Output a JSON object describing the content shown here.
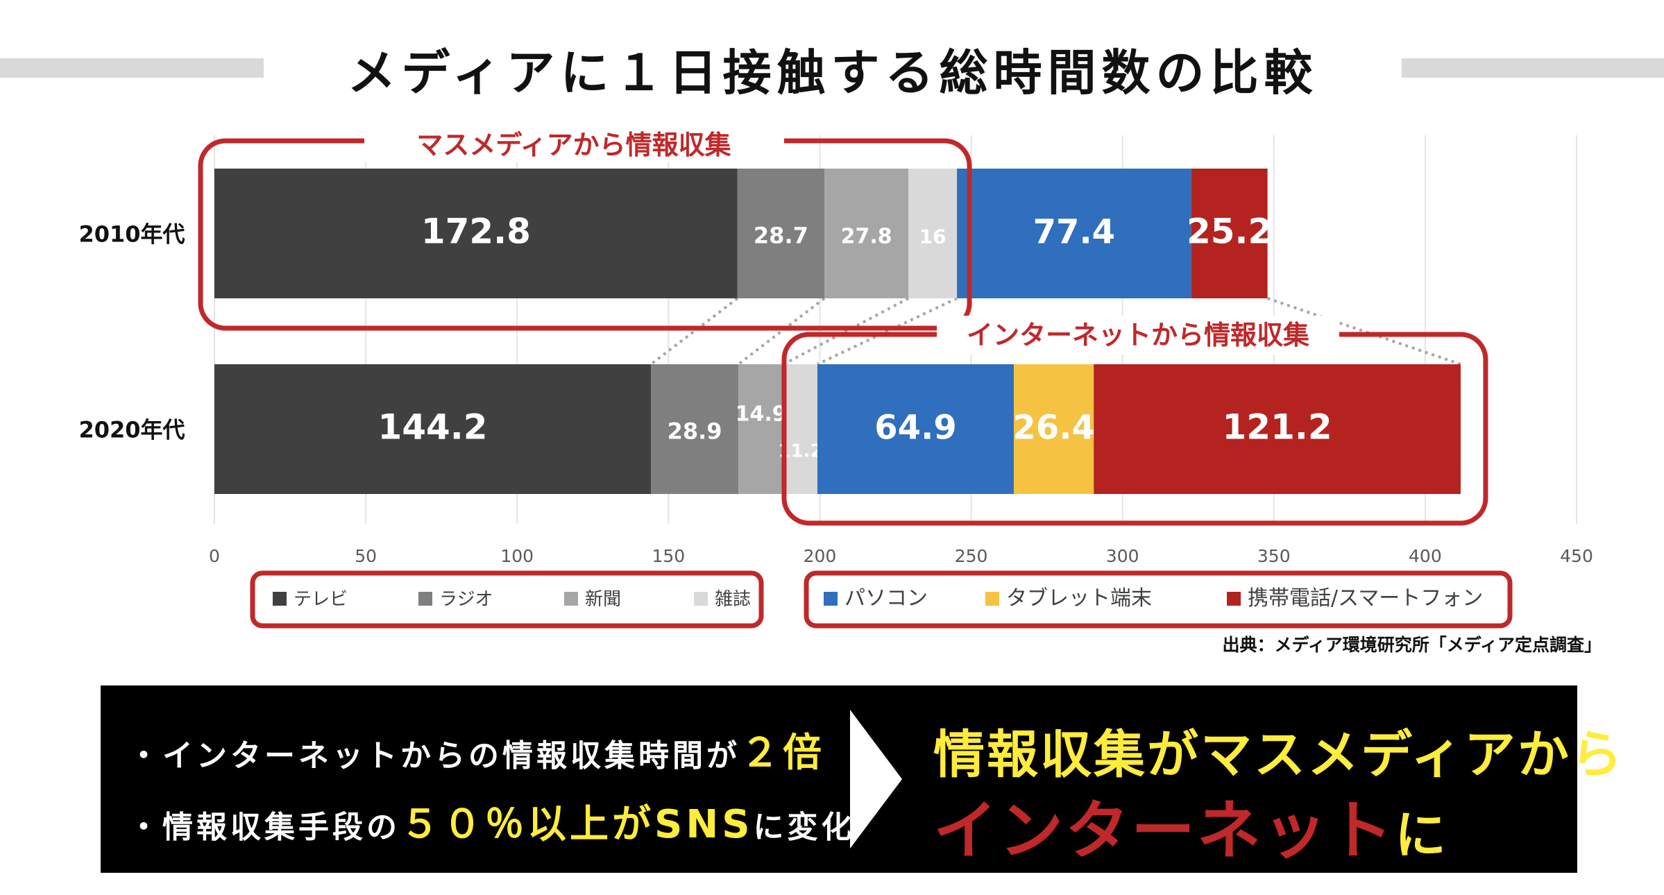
{
  "title": "メディアに１日接触する総時間数の比較",
  "source": "出典：メディア環境研究所「メディア定点調査」",
  "group_labels": {
    "mass_media": "マスメディアから情報収集",
    "internet": "インターネットから情報収集"
  },
  "chart_data": {
    "type": "bar",
    "orientation": "horizontal",
    "stacked": true,
    "categories": [
      "2010年代",
      "2020年代"
    ],
    "series": [
      {
        "name": "テレビ",
        "values": [
          172.8,
          144.2
        ],
        "color": "#404040",
        "labels": [
          "172.8",
          "144.2"
        ]
      },
      {
        "name": "ラジオ",
        "values": [
          28.7,
          28.9
        ],
        "color": "#7f7f7f",
        "labels": [
          "28.7",
          "28.9"
        ]
      },
      {
        "name": "新聞",
        "values": [
          27.8,
          14.9
        ],
        "color": "#a6a6a6",
        "labels": [
          "27.8",
          "14.9"
        ]
      },
      {
        "name": "雑誌",
        "values": [
          16,
          11.2
        ],
        "color": "#d9d9d9",
        "labels": [
          "16",
          "11.2"
        ]
      },
      {
        "name": "パソコン",
        "values": [
          77.4,
          64.9
        ],
        "color": "#2f6fbe",
        "labels": [
          "77.4",
          "64.9"
        ]
      },
      {
        "name": "タブレット端末",
        "values": [
          0,
          26.4
        ],
        "color": "#f5c242",
        "labels": [
          "",
          "26.4"
        ]
      },
      {
        "name": "携帯電話/スマートフォン",
        "values": [
          25.2,
          121.2
        ],
        "color": "#b4231f",
        "labels": [
          "25.2",
          "121.2"
        ]
      }
    ],
    "xlim": [
      0,
      450
    ],
    "xticks": [
      0,
      50,
      100,
      150,
      200,
      250,
      300,
      350,
      400,
      450
    ],
    "grid": true,
    "legend": "bottom"
  },
  "summary": {
    "bullet1_prefix": "・インターネットからの情報収集時間が",
    "bullet1_highlight": "２倍",
    "bullet2_prefix": "・情報収集手段の",
    "bullet2_highlight": "５０％以上がSNS",
    "bullet2_suffix": "に変化",
    "conclusion_line1": "情報収集がマスメディアから",
    "conclusion_line2_main": "インターネット",
    "conclusion_line2_tail": "に"
  },
  "colors": {
    "frame_red": "#c0282a",
    "highlight_yellow": "#ffec3d",
    "panel_black": "#000000"
  }
}
